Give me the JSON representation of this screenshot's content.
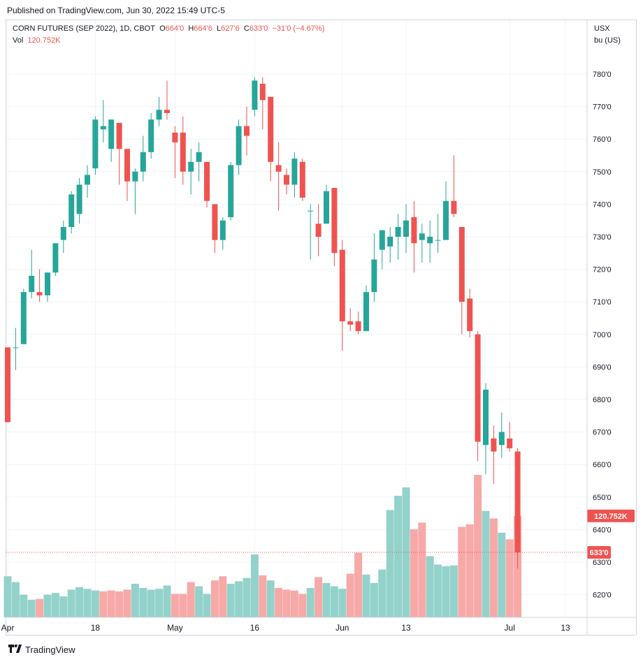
{
  "header": {
    "published": "Published on TradingView.com, Jun 30, 2022 15:49 UTC-5"
  },
  "legend": {
    "symbol": "CORN FUTURES (SEP 2022), 1D, CBOT",
    "o_label": "O",
    "o_value": "664'0",
    "h_label": "H",
    "h_value": "664'6",
    "l_label": "L",
    "l_value": "627'6",
    "c_label": "C",
    "c_value": "633'0",
    "change": "−31'0 (−4.67%)",
    "vol_label": "Vol",
    "vol_value": "120.752K"
  },
  "axis": {
    "currency": "USX",
    "unit": "bu (US)"
  },
  "badges": {
    "volume": "120.752K",
    "price": "633'0"
  },
  "footer": {
    "logo": "TradingView"
  },
  "colors": {
    "up": "#26a69a",
    "down": "#ef5350",
    "vol_up": "#93d2cb",
    "vol_down": "#f7a9a7"
  },
  "chart_data": {
    "type": "candlestick",
    "yticks": [
      "620'0",
      "630'0",
      "640'0",
      "650'0",
      "660'0",
      "670'0",
      "680'0",
      "690'0",
      "700'0",
      "710'0",
      "720'0",
      "730'0",
      "740'0",
      "750'0",
      "760'0",
      "770'0",
      "780'0"
    ],
    "ytick_values": [
      620,
      630,
      640,
      650,
      660,
      670,
      680,
      690,
      700,
      710,
      720,
      730,
      740,
      750,
      760,
      770,
      780
    ],
    "xticks": [
      {
        "label": "Apr",
        "index": 0
      },
      {
        "label": "18",
        "index": 11
      },
      {
        "label": "May",
        "index": 21
      },
      {
        "label": "16",
        "index": 31
      },
      {
        "label": "Jun",
        "index": 42
      },
      {
        "label": "13",
        "index": 50
      },
      {
        "label": "Jul",
        "index": 63
      },
      {
        "label": "13",
        "index": 70
      }
    ],
    "last_close": 633,
    "ohlc": [
      [
        696,
        696,
        673,
        673
      ],
      [
        696,
        702,
        689,
        696
      ],
      [
        697,
        714,
        697,
        713
      ],
      [
        713,
        726,
        711,
        718
      ],
      [
        713,
        720,
        710,
        712
      ],
      [
        712,
        719,
        710,
        719
      ],
      [
        719,
        728,
        718,
        728
      ],
      [
        729,
        735,
        725,
        733
      ],
      [
        733,
        744,
        731,
        743
      ],
      [
        737,
        748,
        734,
        746
      ],
      [
        746,
        752,
        742,
        749
      ],
      [
        751,
        767,
        749,
        766
      ],
      [
        763,
        772,
        759,
        764
      ],
      [
        757,
        766,
        753,
        766
      ],
      [
        765,
        765,
        746,
        757
      ],
      [
        757,
        757,
        741,
        747
      ],
      [
        747,
        751,
        737,
        750
      ],
      [
        750,
        761,
        747,
        756
      ],
      [
        756,
        768,
        754,
        766
      ],
      [
        766,
        773,
        764,
        769
      ],
      [
        769,
        778,
        766,
        768
      ],
      [
        762,
        764,
        748,
        759
      ],
      [
        762,
        767,
        746,
        750
      ],
      [
        750,
        757,
        743,
        753
      ],
      [
        753,
        759,
        747,
        756
      ],
      [
        753,
        753,
        739,
        741
      ],
      [
        740,
        740,
        725,
        729
      ],
      [
        729,
        736,
        726,
        735
      ],
      [
        736,
        753,
        735,
        752
      ],
      [
        752,
        766,
        749,
        764
      ],
      [
        764,
        770,
        755,
        761
      ],
      [
        769,
        779,
        767,
        778
      ],
      [
        777,
        779,
        763,
        772
      ],
      [
        773,
        773,
        747,
        753
      ],
      [
        752,
        759,
        738,
        750
      ],
      [
        749,
        751,
        743,
        746
      ],
      [
        746,
        756,
        742,
        754
      ],
      [
        753,
        754,
        741,
        742
      ],
      [
        738,
        740,
        723,
        738
      ],
      [
        734,
        740,
        724,
        730
      ],
      [
        734,
        746,
        734,
        744
      ],
      [
        745,
        745,
        721,
        725
      ],
      [
        726,
        729,
        695,
        704
      ],
      [
        704,
        708,
        701,
        703
      ],
      [
        704,
        707,
        700,
        701
      ],
      [
        701,
        715,
        701,
        713
      ],
      [
        713,
        731,
        710,
        723
      ],
      [
        726,
        732,
        720,
        732
      ],
      [
        727,
        733,
        722,
        730
      ],
      [
        730,
        737,
        723,
        733
      ],
      [
        730,
        740,
        725,
        735
      ],
      [
        736,
        741,
        719,
        728
      ],
      [
        729,
        734,
        722,
        731
      ],
      [
        728,
        735,
        722,
        730
      ],
      [
        729,
        737,
        725,
        729
      ],
      [
        729,
        747,
        729,
        741
      ],
      [
        741,
        755,
        736,
        737
      ],
      [
        733,
        733,
        700,
        710
      ],
      [
        711,
        714,
        699,
        701
      ],
      [
        700,
        701,
        661,
        667
      ],
      [
        666,
        685,
        657,
        683
      ],
      [
        668,
        672,
        654,
        664
      ],
      [
        666,
        676,
        662,
        670
      ],
      [
        668,
        673,
        664,
        665
      ],
      [
        664,
        665,
        628,
        633
      ]
    ],
    "volume": [
      {
        "v": 0.49,
        "up": true
      },
      {
        "v": 0.42,
        "up": true
      },
      {
        "v": 0.27,
        "up": true
      },
      {
        "v": 0.21,
        "up": true
      },
      {
        "v": 0.22,
        "up": false
      },
      {
        "v": 0.27,
        "up": true
      },
      {
        "v": 0.29,
        "up": true
      },
      {
        "v": 0.25,
        "up": true
      },
      {
        "v": 0.33,
        "up": true
      },
      {
        "v": 0.36,
        "up": true
      },
      {
        "v": 0.34,
        "up": true
      },
      {
        "v": 0.32,
        "up": true
      },
      {
        "v": 0.31,
        "up": false
      },
      {
        "v": 0.32,
        "up": false
      },
      {
        "v": 0.31,
        "up": false
      },
      {
        "v": 0.33,
        "up": false
      },
      {
        "v": 0.4,
        "up": true
      },
      {
        "v": 0.35,
        "up": true
      },
      {
        "v": 0.33,
        "up": true
      },
      {
        "v": 0.34,
        "up": true
      },
      {
        "v": 0.38,
        "up": true
      },
      {
        "v": 0.28,
        "up": false
      },
      {
        "v": 0.28,
        "up": false
      },
      {
        "v": 0.42,
        "up": false
      },
      {
        "v": 0.37,
        "up": true
      },
      {
        "v": 0.28,
        "up": true
      },
      {
        "v": 0.44,
        "up": false
      },
      {
        "v": 0.49,
        "up": false
      },
      {
        "v": 0.4,
        "up": true
      },
      {
        "v": 0.43,
        "up": true
      },
      {
        "v": 0.47,
        "up": true
      },
      {
        "v": 0.75,
        "up": true
      },
      {
        "v": 0.5,
        "up": false
      },
      {
        "v": 0.44,
        "up": true
      },
      {
        "v": 0.35,
        "up": false
      },
      {
        "v": 0.33,
        "up": false
      },
      {
        "v": 0.32,
        "up": false
      },
      {
        "v": 0.28,
        "up": false
      },
      {
        "v": 0.35,
        "up": true
      },
      {
        "v": 0.48,
        "up": false
      },
      {
        "v": 0.41,
        "up": true
      },
      {
        "v": 0.37,
        "up": true
      },
      {
        "v": 0.34,
        "up": true
      },
      {
        "v": 0.52,
        "up": false
      },
      {
        "v": 0.77,
        "up": false
      },
      {
        "v": 0.51,
        "up": true
      },
      {
        "v": 0.41,
        "up": true
      },
      {
        "v": 0.57,
        "up": true
      },
      {
        "v": 1.28,
        "up": true
      },
      {
        "v": 1.45,
        "up": true
      },
      {
        "v": 1.55,
        "up": true
      },
      {
        "v": 1.05,
        "up": false
      },
      {
        "v": 1.13,
        "up": false
      },
      {
        "v": 0.73,
        "up": true
      },
      {
        "v": 0.63,
        "up": true
      },
      {
        "v": 0.61,
        "up": true
      },
      {
        "v": 0.62,
        "up": true
      },
      {
        "v": 1.08,
        "up": false
      },
      {
        "v": 1.11,
        "up": false
      },
      {
        "v": 1.7,
        "up": false
      },
      {
        "v": 1.27,
        "up": true
      },
      {
        "v": 1.18,
        "up": false
      },
      {
        "v": 1.01,
        "up": true
      },
      {
        "v": 0.93,
        "up": false
      },
      {
        "v": 1.21,
        "up": false
      }
    ]
  }
}
